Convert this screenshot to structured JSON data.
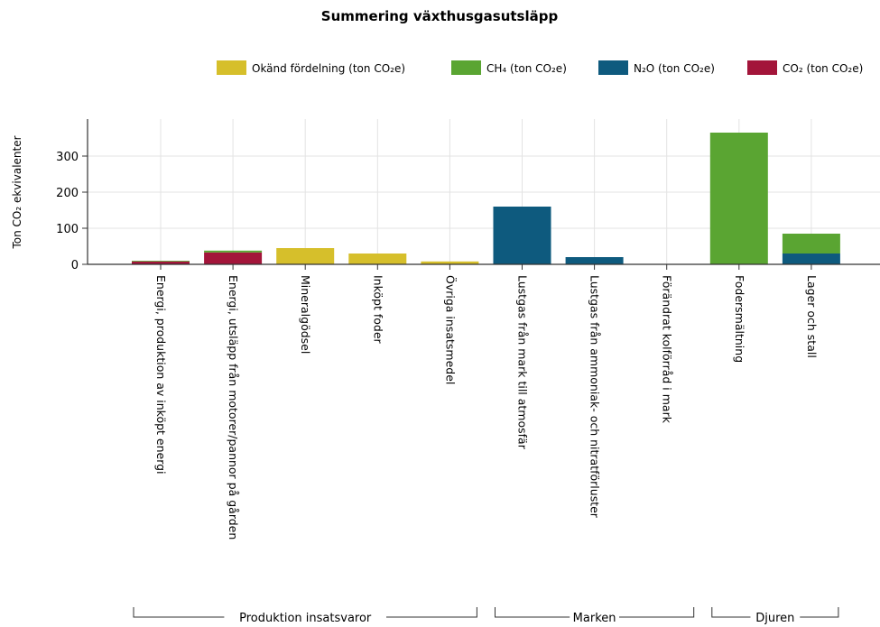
{
  "chart_data": {
    "type": "bar",
    "stacked": true,
    "title": "Summering växthusgasutsläpp",
    "ylabel": "Ton CO₂ ekvivalenter",
    "ylim": [
      0,
      390
    ],
    "yticks": [
      0,
      100,
      200,
      300
    ],
    "grid": true,
    "legend_position": "top-right",
    "categories": [
      "Energi, produktion av inköpt energi",
      "Energi, utsläpp från motorer/pannor på gården",
      "Mineralgödsel",
      "Inköpt foder",
      "Övriga insatsmedel",
      "Lustgas från mark till atmosfär",
      "Lustgas från ammoniak- och nitratförluster",
      "Förändrat kolförråd i mark",
      "Fodersmältning",
      "Lager och stall"
    ],
    "groups": [
      {
        "label": "Produktion insatsvaror",
        "categories": [
          0,
          1,
          2,
          3,
          4
        ]
      },
      {
        "label": "Marken",
        "categories": [
          5,
          6,
          7
        ]
      },
      {
        "label": "Djuren",
        "categories": [
          8,
          9
        ]
      }
    ],
    "series": [
      {
        "name": "CO₂ (ton CO₂e)",
        "color": "#a3153a",
        "values": [
          8,
          33,
          0,
          0,
          0,
          0,
          0,
          0,
          0,
          0
        ]
      },
      {
        "name": "N₂O (ton CO₂e)",
        "color": "#0e5a7e",
        "values": [
          0,
          0,
          0,
          0,
          0,
          160,
          20,
          0,
          0,
          30
        ]
      },
      {
        "name": "CH₄ (ton CO₂e)",
        "color": "#5aa532",
        "values": [
          2,
          5,
          0,
          0,
          0,
          0,
          0,
          0,
          365,
          55
        ]
      },
      {
        "name": "Okänd fördelning (ton CO₂e)",
        "color": "#d6bf2b",
        "values": [
          0,
          0,
          45,
          30,
          8,
          0,
          0,
          0,
          0,
          0
        ]
      }
    ],
    "legend_order": [
      3,
      2,
      1,
      0
    ]
  }
}
